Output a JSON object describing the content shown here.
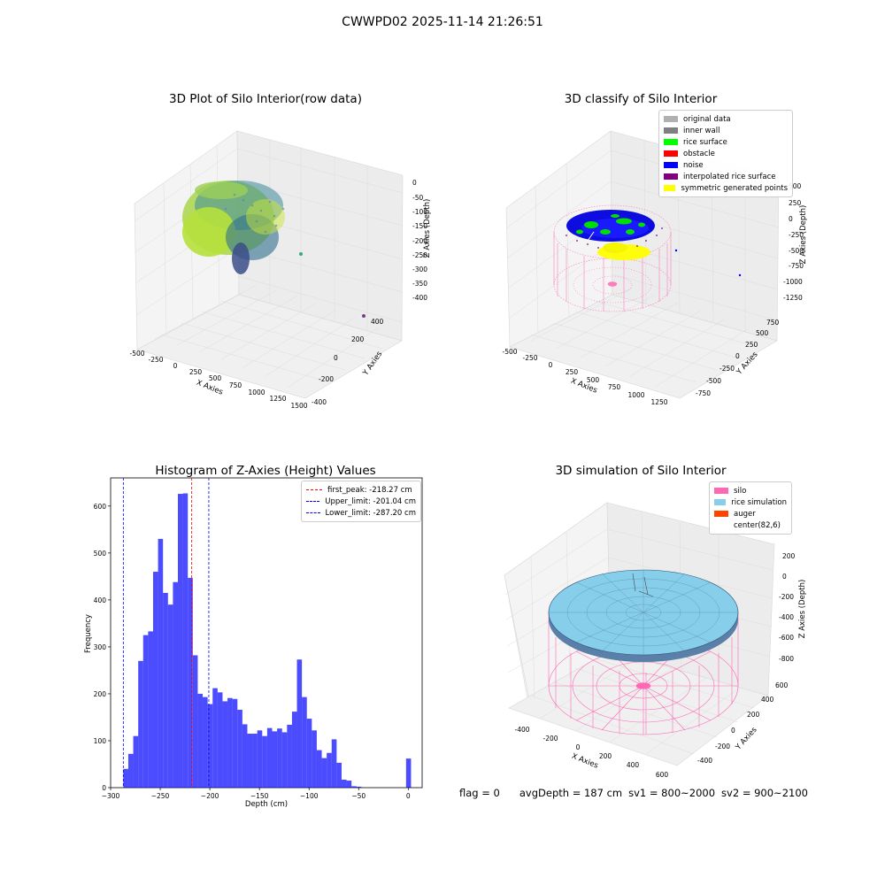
{
  "suptitle": "CWWPD02 2025-11-14 21:26:51",
  "panels": {
    "raw": {
      "title": "3D Plot of Silo Interior(row data)",
      "xlabel": "X Axies",
      "ylabel": "Y Axies",
      "zlabel": "Z Axies (Depth)",
      "xticks": [
        "-500",
        "-250",
        "0",
        "250",
        "500",
        "750",
        "1000",
        "1250",
        "1500"
      ],
      "yticks": [
        "400",
        "200",
        "0",
        "-200",
        "-400"
      ],
      "zticks": [
        "0",
        "-50",
        "-100",
        "-150",
        "-200",
        "-250",
        "-300",
        "-350",
        "-400"
      ]
    },
    "classify": {
      "title": "3D classify of Silo Interior",
      "xlabel": "X Axies",
      "ylabel": "Y Axies",
      "zlabel": "Z Axies (Depth)",
      "xticks": [
        "-500",
        "-250",
        "0",
        "250",
        "500",
        "750",
        "1000",
        "1250"
      ],
      "yticks": [
        "750",
        "500",
        "250",
        "0",
        "-250",
        "-500",
        "-750"
      ],
      "zticks": [
        "500",
        "250",
        "0",
        "-250",
        "-500",
        "-750",
        "-1000",
        "-1250"
      ],
      "legend": [
        {
          "label": "original data",
          "color": "#b0b0b0"
        },
        {
          "label": "inner wall",
          "color": "#808080"
        },
        {
          "label": "rice surface",
          "color": "#00ff00"
        },
        {
          "label": "obstacle",
          "color": "#ff0000"
        },
        {
          "label": "noise",
          "color": "#0000ff"
        },
        {
          "label": "interpolated rice surface",
          "color": "#800080"
        },
        {
          "label": "symmetric generated points",
          "color": "#ffff00"
        }
      ]
    },
    "simulation": {
      "title": "3D simulation of Silo Interior",
      "xlabel": "X Axies",
      "ylabel": "Y Axies",
      "zlabel": "Z Axies (Depth)",
      "xticks": [
        "-400",
        "-200",
        "0",
        "200",
        "400",
        "600"
      ],
      "yticks": [
        "600",
        "400",
        "200",
        "0",
        "-200",
        "-400"
      ],
      "zticks": [
        "200",
        "0",
        "-200",
        "-400",
        "-600",
        "-800"
      ],
      "legend": [
        {
          "label": "silo",
          "color": "#ff69b4"
        },
        {
          "label": "rice simulation",
          "color": "#87ceeb"
        },
        {
          "label": "auger",
          "color": "#ff4500"
        },
        {
          "label": "center(82,6)",
          "color": ""
        }
      ]
    }
  },
  "chart_data": {
    "type": "bar",
    "title": "Histogram of Z-Axies (Height) Values",
    "xlabel": "Depth (cm)",
    "ylabel": "Frequency",
    "xlim": [
      -300,
      14
    ],
    "ylim": [
      0,
      660
    ],
    "xticks": [
      -300,
      -250,
      -200,
      -150,
      -100,
      -50,
      0
    ],
    "yticks": [
      0,
      100,
      200,
      300,
      400,
      500,
      600
    ],
    "bar_color": "#0000ff",
    "bin_edges": [
      -287.2,
      -282.2,
      -277.2,
      -272.2,
      -267.2,
      -262.2,
      -257.2,
      -252.2,
      -247.2,
      -242.2,
      -237.2,
      -232.2,
      -227.2,
      -222.2,
      -217.2,
      -212.2,
      -207.2,
      -202.2,
      -197.2,
      -192.2,
      -187.2,
      -182.2,
      -177.2,
      -172.2,
      -167.2,
      -162.2,
      -157.2,
      -152.2,
      -147.2,
      -142.2,
      -137.2,
      -132.2,
      -127.2,
      -122.2,
      -117.2,
      -112.2,
      -107.2,
      -102.2,
      -97.2,
      -92.2,
      -87.2,
      -82.2,
      -77.2,
      -72.2,
      -67.2,
      -62.2,
      -57.2,
      -52.2,
      -47.2,
      -42.2,
      -37.2,
      -32.2,
      -27.2,
      -22.2,
      -17.2,
      -12.2,
      -7.2,
      -2.2,
      2.8
    ],
    "values": [
      40,
      72,
      110,
      270,
      325,
      333,
      460,
      530,
      415,
      390,
      438,
      626,
      627,
      447,
      282,
      200,
      193,
      178,
      212,
      203,
      184,
      191,
      189,
      166,
      135,
      115,
      115,
      122,
      110,
      127,
      120,
      126,
      118,
      134,
      162,
      273,
      193,
      147,
      122,
      80,
      63,
      74,
      103,
      53,
      17,
      15,
      3,
      2,
      0,
      0,
      0,
      0,
      0,
      0,
      0,
      0,
      0,
      62
    ],
    "lines": [
      {
        "label": "first_peak: -218.27 cm",
        "x": -218.27,
        "color": "#ff0000"
      },
      {
        "label": "Upper_limit: -201.04 cm",
        "x": -201.04,
        "color": "#0000ff"
      },
      {
        "label": "Lower_limit: -287.20 cm",
        "x": -287.2,
        "color": "#0000ff"
      }
    ]
  },
  "footer": {
    "flag": "flag = 0",
    "avg": "avgDepth = 187 cm",
    "sv1": "sv1 = 800~2000",
    "sv2": "sv2 = 900~2100"
  }
}
